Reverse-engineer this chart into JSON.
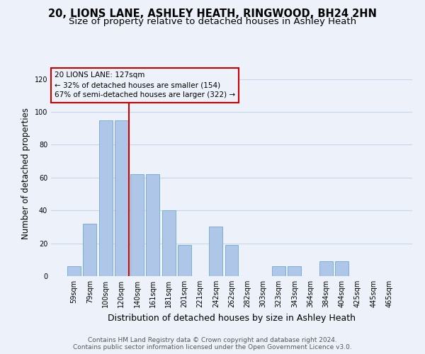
{
  "title": "20, LIONS LANE, ASHLEY HEATH, RINGWOOD, BH24 2HN",
  "subtitle": "Size of property relative to detached houses in Ashley Heath",
  "xlabel": "Distribution of detached houses by size in Ashley Heath",
  "ylabel": "Number of detached properties",
  "categories": [
    "59sqm",
    "79sqm",
    "100sqm",
    "120sqm",
    "140sqm",
    "161sqm",
    "181sqm",
    "201sqm",
    "221sqm",
    "242sqm",
    "262sqm",
    "282sqm",
    "303sqm",
    "323sqm",
    "343sqm",
    "364sqm",
    "384sqm",
    "404sqm",
    "425sqm",
    "445sqm",
    "465sqm"
  ],
  "values": [
    6,
    32,
    95,
    95,
    62,
    62,
    40,
    19,
    0,
    30,
    19,
    0,
    0,
    6,
    6,
    0,
    9,
    9,
    0,
    0,
    0
  ],
  "bar_color": "#aec6e8",
  "bar_edge_color": "#7bafd4",
  "grid_color": "#c8d4e8",
  "background_color": "#edf2fa",
  "property_label": "20 LIONS LANE: 127sqm",
  "annotation_line1": "← 32% of detached houses are smaller (154)",
  "annotation_line2": "67% of semi-detached houses are larger (322) →",
  "vline_color": "#cc0000",
  "annotation_box_edge_color": "#cc0000",
  "vline_x_index": 3.5,
  "ylim": [
    0,
    125
  ],
  "yticks": [
    0,
    20,
    40,
    60,
    80,
    100,
    120
  ],
  "footer_line1": "Contains HM Land Registry data © Crown copyright and database right 2024.",
  "footer_line2": "Contains public sector information licensed under the Open Government Licence v3.0.",
  "title_fontsize": 10.5,
  "subtitle_fontsize": 9.5,
  "xlabel_fontsize": 9,
  "ylabel_fontsize": 8.5,
  "tick_fontsize": 7,
  "annotation_fontsize": 7.5,
  "footer_fontsize": 6.5
}
